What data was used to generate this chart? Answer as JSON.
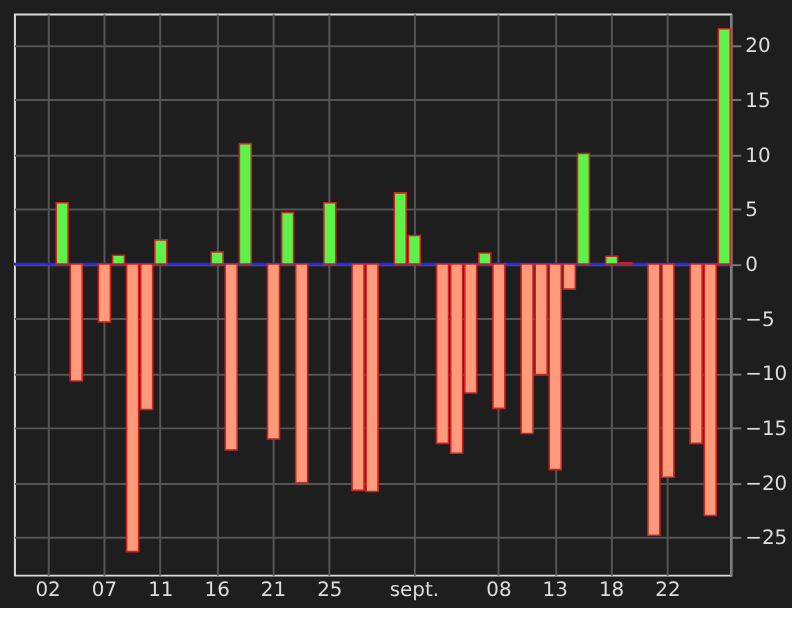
{
  "chart_data": {
    "type": "bar",
    "categories": [
      null,
      null,
      "02",
      null,
      null,
      null,
      "07",
      null,
      null,
      null,
      "11",
      null,
      null,
      null,
      "16",
      null,
      null,
      null,
      "21",
      null,
      null,
      null,
      "25",
      null,
      null,
      null,
      null,
      null,
      "sept.",
      null,
      null,
      null,
      null,
      null,
      "08",
      null,
      null,
      null,
      "13",
      null,
      null,
      null,
      "18",
      null,
      null,
      null,
      "22",
      null,
      null,
      null,
      null
    ],
    "values": [
      null,
      null,
      null,
      5.6,
      -10.7,
      null,
      -5.3,
      0.8,
      -26.3,
      -13.3,
      2.2,
      null,
      null,
      null,
      1.1,
      -17,
      11,
      null,
      -16,
      4.7,
      -20,
      null,
      5.6,
      null,
      -20.7,
      -20.8,
      null,
      6.5,
      2.6,
      null,
      -16.4,
      -17.3,
      -11.8,
      1,
      -13.2,
      null,
      -15.5,
      -10.1,
      -18.8,
      -2.3,
      10.1,
      null,
      0.7,
      0.1,
      null,
      -24.8,
      -19.5,
      null,
      -16.4,
      -23,
      21.5
    ],
    "colors": [
      null,
      null,
      null,
      "#5cf24a",
      "#ff9a7a",
      null,
      "#ff9a7a",
      "#5cf24a",
      "#ff9a7a",
      "#ff9a7a",
      "#5cf24a",
      null,
      null,
      null,
      "#5cf24a",
      "#ff9a7a",
      "#5cf24a",
      null,
      "#ff9a7a",
      "#5cf24a",
      "#ff9a7a",
      null,
      "#5cf24a",
      null,
      "#ff9a7a",
      "#ff9a7a",
      null,
      "#5cf24a",
      "#5cf24a",
      null,
      "#ff9a7a",
      "#ff9a7a",
      "#ff9a7a",
      "#5cf24a",
      "#ff9a7a",
      null,
      "#ff9a7a",
      "#ff9a7a",
      "#ff9a7a",
      "#ff9a7a",
      "#5cf24a",
      null,
      "#5cf24a",
      "#5cf24a",
      null,
      "#ff9a7a",
      "#ff9a7a",
      null,
      "#ff9a7a",
      "#ff9a7a",
      "#5cf24a"
    ],
    "ylim": [
      -28.4,
      22.9
    ],
    "yticks": [
      -25,
      -20,
      -15,
      -10,
      -5,
      0,
      5,
      10,
      15,
      20
    ],
    "grid": true,
    "ref_lines": [
      {
        "axis": "y",
        "value": 0,
        "color": "#2a2ae0"
      }
    ]
  }
}
